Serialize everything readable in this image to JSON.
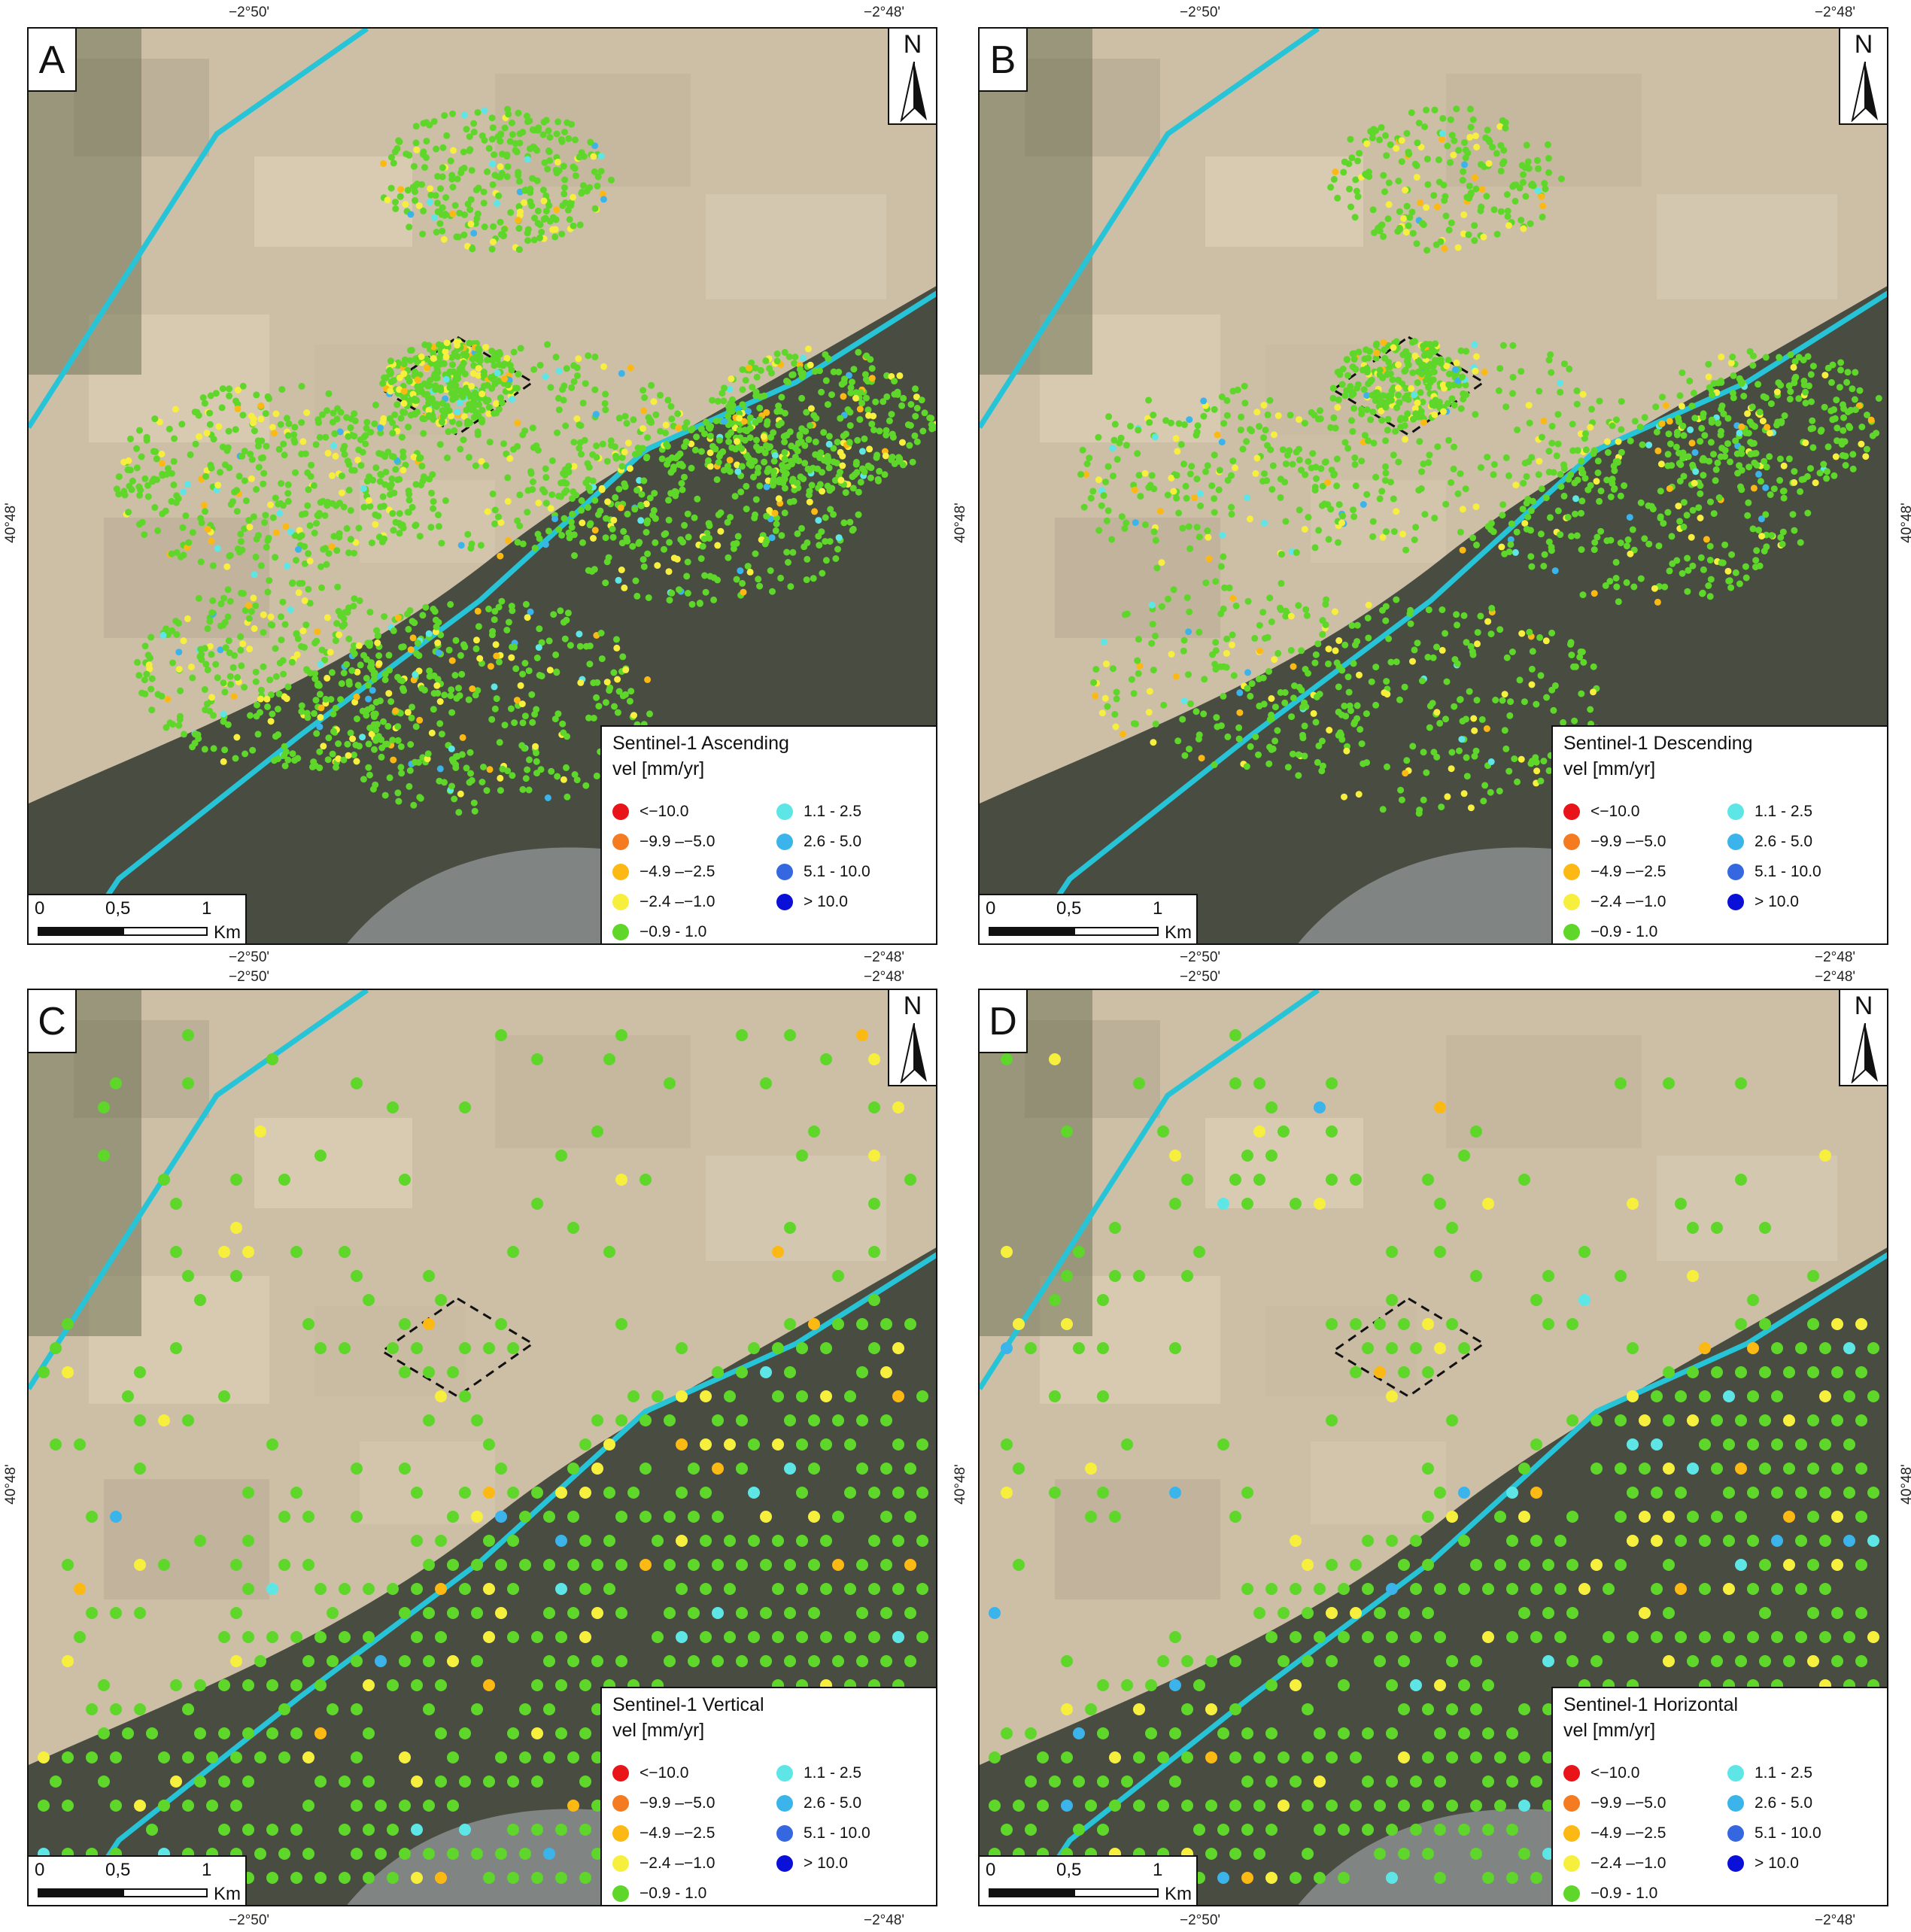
{
  "coordinates": {
    "lon_west": "−2°50'",
    "lon_east": "−2°48'",
    "lat": "40°48'"
  },
  "north_arrow": {
    "label": "N",
    "icon": "north-arrow-icon"
  },
  "scale_bar": {
    "tick_0": "0",
    "tick_1": "0,5",
    "tick_2": "1",
    "unit": "Km"
  },
  "colors": {
    "map_background": "#cdbfa6",
    "dark_terrain": "#3a3f36",
    "fault_line": "#27c4d8",
    "roi_outline": "#111111"
  },
  "legend": {
    "units": "vel [mm/yr]",
    "classes": [
      {
        "label": "<−10.0",
        "color": "#e8141a"
      },
      {
        "label": "−9.9 –−5.0",
        "color": "#f47b20"
      },
      {
        "label": "−4.9 –−2.5",
        "color": "#fdb913"
      },
      {
        "label": "−2.4 –−1.0",
        "color": "#f7ef3e"
      },
      {
        "label": "−0.9 - 1.0",
        "color": "#5ed62a"
      },
      {
        "label": "1.1 - 2.5",
        "color": "#5ee6e6"
      },
      {
        "label": "2.6 - 5.0",
        "color": "#3ab4ea"
      },
      {
        "label": "5.1 - 10.0",
        "color": "#3467e0"
      },
      {
        "label": "> 10.0",
        "color": "#0a10d8"
      }
    ]
  },
  "panels": [
    {
      "letter": "A",
      "title": "Sentinel-1 Ascending"
    },
    {
      "letter": "B",
      "title": "Sentinel-1 Descending"
    },
    {
      "letter": "C",
      "title": "Sentinel-1 Vertical"
    },
    {
      "letter": "D",
      "title": "Sentinel-1 Horizontal"
    }
  ]
}
